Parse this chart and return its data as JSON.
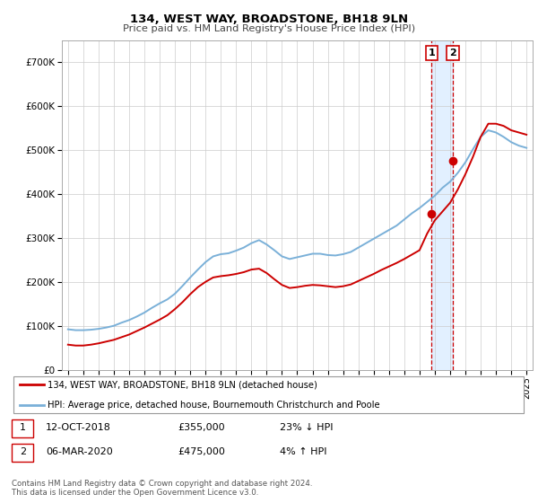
{
  "title1": "134, WEST WAY, BROADSTONE, BH18 9LN",
  "title2": "Price paid vs. HM Land Registry's House Price Index (HPI)",
  "background_color": "#ffffff",
  "plot_bg_color": "#ffffff",
  "grid_color": "#cccccc",
  "hpi_color": "#7ab0d8",
  "price_color": "#cc0000",
  "shade_color": "#ddeeff",
  "transaction1_date": 2018.79,
  "transaction2_date": 2020.18,
  "transaction1_price": 355000,
  "transaction2_price": 475000,
  "ylim_max": 750000,
  "legend_address": "134, WEST WAY, BROADSTONE, BH18 9LN (detached house)",
  "legend_hpi": "HPI: Average price, detached house, Bournemouth Christchurch and Poole",
  "table_row1": [
    "1",
    "12-OCT-2018",
    "£355,000",
    "23% ↓ HPI"
  ],
  "table_row2": [
    "2",
    "06-MAR-2020",
    "£475,000",
    "4% ↑ HPI"
  ],
  "footnote": "Contains HM Land Registry data © Crown copyright and database right 2024.\nThis data is licensed under the Open Government Licence v3.0.",
  "hpi_years": [
    1995.0,
    1995.5,
    1996.0,
    1996.5,
    1997.0,
    1997.5,
    1998.0,
    1998.5,
    1999.0,
    1999.5,
    2000.0,
    2000.5,
    2001.0,
    2001.5,
    2002.0,
    2002.5,
    2003.0,
    2003.5,
    2004.0,
    2004.5,
    2005.0,
    2005.5,
    2006.0,
    2006.5,
    2007.0,
    2007.5,
    2008.0,
    2008.5,
    2009.0,
    2009.5,
    2010.0,
    2010.5,
    2011.0,
    2011.5,
    2012.0,
    2012.5,
    2013.0,
    2013.5,
    2014.0,
    2014.5,
    2015.0,
    2015.5,
    2016.0,
    2016.5,
    2017.0,
    2017.5,
    2018.0,
    2018.5,
    2019.0,
    2019.5,
    2020.0,
    2020.5,
    2021.0,
    2021.5,
    2022.0,
    2022.5,
    2023.0,
    2023.5,
    2024.0,
    2024.5,
    2025.0
  ],
  "hpi_values": [
    92000,
    90000,
    90000,
    91000,
    93000,
    96000,
    100000,
    107000,
    113000,
    121000,
    130000,
    141000,
    151000,
    160000,
    173000,
    191000,
    210000,
    228000,
    245000,
    258000,
    263000,
    265000,
    271000,
    278000,
    288000,
    295000,
    285000,
    272000,
    258000,
    252000,
    256000,
    260000,
    264000,
    264000,
    261000,
    260000,
    263000,
    268000,
    278000,
    288000,
    298000,
    308000,
    318000,
    328000,
    342000,
    356000,
    368000,
    382000,
    396000,
    414000,
    428000,
    448000,
    472000,
    502000,
    530000,
    545000,
    540000,
    530000,
    518000,
    510000,
    505000
  ],
  "price_years": [
    1995.0,
    1995.5,
    1996.0,
    1996.5,
    1997.0,
    1997.5,
    1998.0,
    1998.5,
    1999.0,
    1999.5,
    2000.0,
    2000.5,
    2001.0,
    2001.5,
    2002.0,
    2002.5,
    2003.0,
    2003.5,
    2004.0,
    2004.5,
    2005.0,
    2005.5,
    2006.0,
    2006.5,
    2007.0,
    2007.5,
    2008.0,
    2008.5,
    2009.0,
    2009.5,
    2010.0,
    2010.5,
    2011.0,
    2011.5,
    2012.0,
    2012.5,
    2013.0,
    2013.5,
    2014.0,
    2014.5,
    2015.0,
    2015.5,
    2016.0,
    2016.5,
    2017.0,
    2017.5,
    2018.0,
    2018.5,
    2019.0,
    2019.5,
    2020.0,
    2020.5,
    2021.0,
    2021.5,
    2022.0,
    2022.5,
    2023.0,
    2023.5,
    2024.0,
    2024.5,
    2025.0
  ],
  "price_values": [
    57000,
    55000,
    55000,
    57000,
    60000,
    64000,
    68000,
    74000,
    80000,
    88000,
    96000,
    105000,
    114000,
    124000,
    138000,
    154000,
    172000,
    188000,
    200000,
    210000,
    213000,
    215000,
    218000,
    222000,
    228000,
    230000,
    220000,
    206000,
    193000,
    186000,
    188000,
    191000,
    193000,
    192000,
    190000,
    188000,
    190000,
    194000,
    202000,
    210000,
    218000,
    227000,
    235000,
    243000,
    252000,
    262000,
    272000,
    310000,
    340000,
    360000,
    380000,
    410000,
    445000,
    485000,
    530000,
    560000,
    560000,
    555000,
    545000,
    540000,
    535000
  ],
  "xtick_years": [
    1995,
    1996,
    1997,
    1998,
    1999,
    2000,
    2001,
    2002,
    2003,
    2004,
    2005,
    2006,
    2007,
    2008,
    2009,
    2010,
    2011,
    2012,
    2013,
    2014,
    2015,
    2016,
    2017,
    2018,
    2019,
    2020,
    2021,
    2022,
    2023,
    2024,
    2025
  ]
}
